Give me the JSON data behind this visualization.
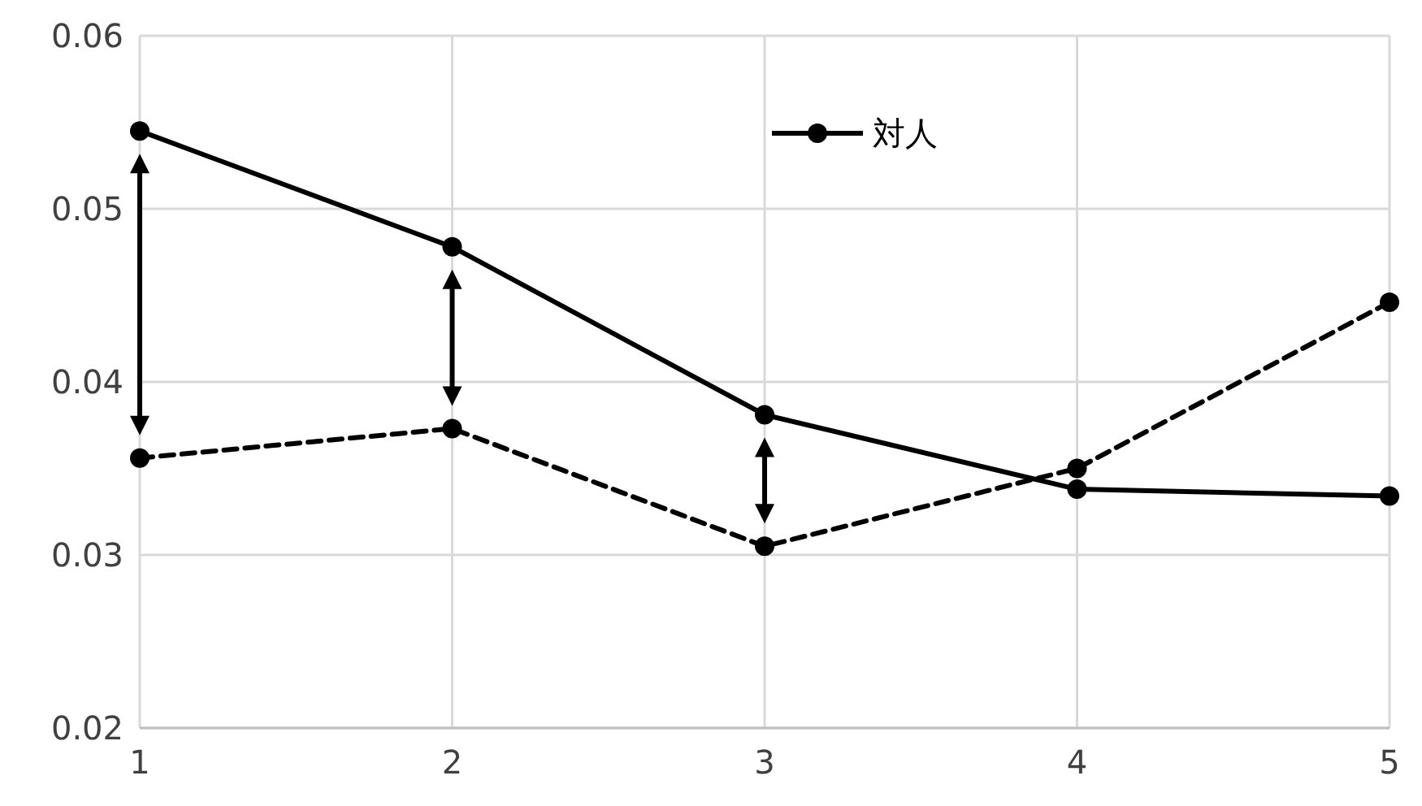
{
  "chart_data": {
    "type": "line",
    "x": [
      1,
      2,
      3,
      4,
      5
    ],
    "xlim": [
      1,
      5
    ],
    "xticks": [
      1,
      2,
      3,
      4,
      5
    ],
    "ylim": [
      0.02,
      0.06
    ],
    "yticks": [
      0.02,
      0.03,
      0.04,
      0.05,
      0.06
    ],
    "grid": true,
    "legend": "top right",
    "marker": "circle",
    "series": [
      {
        "name": "対人",
        "color": "#000000",
        "line_style": "solid",
        "values": [
          0.0545,
          0.0478,
          0.0381,
          0.0338,
          0.0334
        ]
      },
      {
        "color": "#000000",
        "line_style": "dashed",
        "values": [
          0.0356,
          0.0373,
          0.0305,
          0.035,
          0.0446
        ]
      }
    ]
  }
}
